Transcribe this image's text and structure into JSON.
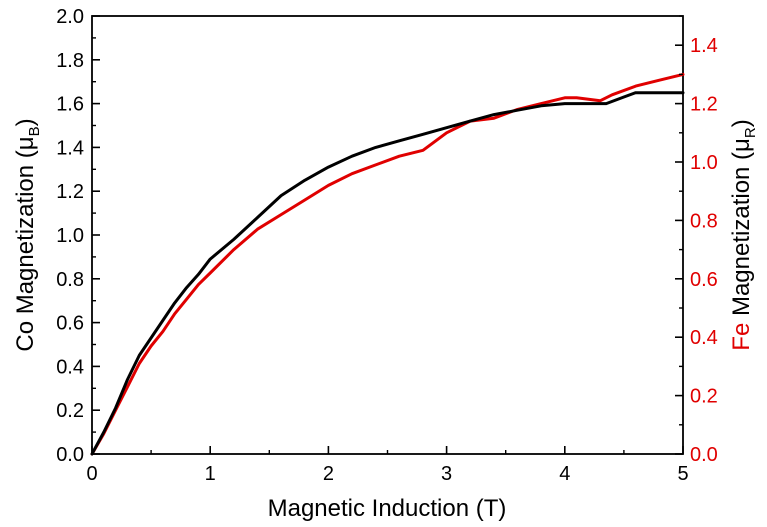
{
  "chart_data": {
    "type": "line",
    "xlabel": "Magnetic Induction (T)",
    "ylabel_left": {
      "prefix": "Co Magnetization (",
      "unit_symbol": "μ",
      "unit_subscript": "B",
      "suffix": ")"
    },
    "ylabel_right": {
      "prefix": "Fe",
      "rest": " Magnetization (",
      "unit_symbol": "μ",
      "unit_subscript": "R",
      "suffix": ")"
    },
    "xlim": [
      0,
      5
    ],
    "ylim_left": [
      0,
      2.0
    ],
    "ylim_right": [
      0,
      1.5
    ],
    "x_ticks": [
      "0",
      "1",
      "2",
      "3",
      "4",
      "5"
    ],
    "y_ticks_left": [
      "0.0",
      "0.2",
      "0.4",
      "0.6",
      "0.8",
      "1.0",
      "1.2",
      "1.4",
      "1.6",
      "1.8",
      "2.0"
    ],
    "y_ticks_right": [
      "0.0",
      "0.2",
      "0.4",
      "0.6",
      "0.8",
      "1.0",
      "1.2",
      "1.4"
    ],
    "grid": false,
    "colors": {
      "co": "#000000",
      "fe": "#e00000",
      "axis": "#000000"
    },
    "series": [
      {
        "axis": "left",
        "color": "#000000",
        "x": [
          0,
          0.1,
          0.2,
          0.3,
          0.4,
          0.5,
          0.6,
          0.7,
          0.8,
          0.9,
          1.0,
          1.2,
          1.4,
          1.6,
          1.8,
          2.0,
          2.2,
          2.4,
          2.6,
          2.8,
          3.0,
          3.2,
          3.4,
          3.6,
          3.8,
          4.0,
          4.2,
          4.35,
          4.5,
          4.6,
          4.8,
          5.0
        ],
        "y": [
          0,
          0.1,
          0.21,
          0.34,
          0.45,
          0.53,
          0.61,
          0.69,
          0.76,
          0.82,
          0.89,
          0.98,
          1.08,
          1.18,
          1.25,
          1.31,
          1.36,
          1.4,
          1.43,
          1.46,
          1.49,
          1.52,
          1.55,
          1.57,
          1.59,
          1.6,
          1.6,
          1.6,
          1.63,
          1.65,
          1.65,
          1.65
        ]
      },
      {
        "axis": "right",
        "color": "#e00000",
        "x": [
          0,
          0.1,
          0.2,
          0.3,
          0.4,
          0.5,
          0.6,
          0.7,
          0.8,
          0.9,
          1.0,
          1.2,
          1.4,
          1.6,
          1.8,
          2.0,
          2.2,
          2.4,
          2.6,
          2.8,
          3.0,
          3.2,
          3.4,
          3.6,
          3.8,
          4.0,
          4.1,
          4.3,
          4.4,
          4.6,
          4.8,
          5.0
        ],
        "y": [
          0,
          0.07,
          0.15,
          0.23,
          0.31,
          0.37,
          0.42,
          0.48,
          0.53,
          0.58,
          0.62,
          0.7,
          0.77,
          0.82,
          0.87,
          0.92,
          0.96,
          0.99,
          1.02,
          1.04,
          1.1,
          1.14,
          1.15,
          1.18,
          1.2,
          1.22,
          1.22,
          1.21,
          1.23,
          1.26,
          1.28,
          1.3
        ]
      }
    ]
  }
}
